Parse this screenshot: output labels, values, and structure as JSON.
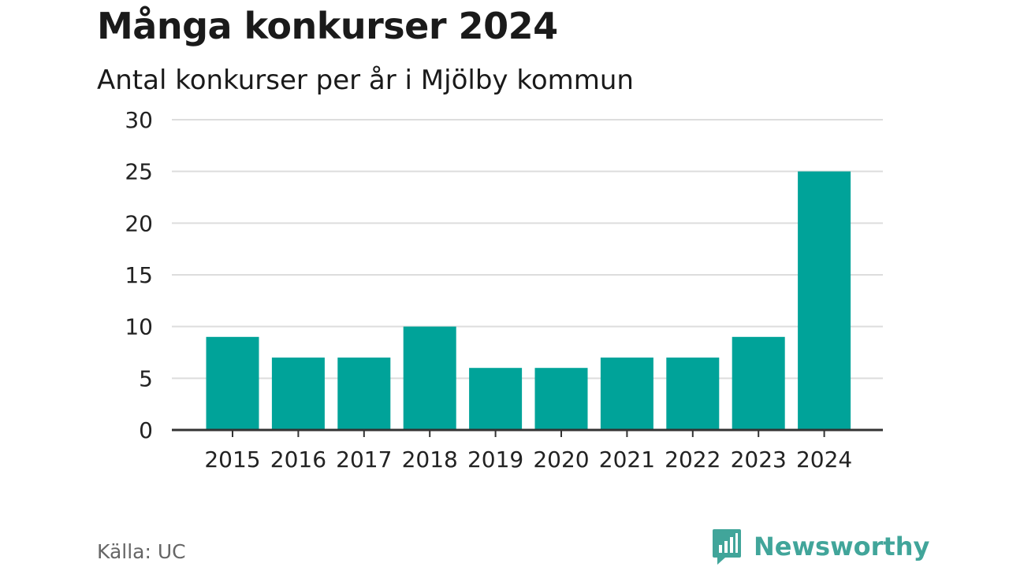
{
  "title": "Många konkurser 2024",
  "subtitle": "Antal konkurser per år i Mjölby kommun",
  "source": "Källa: UC",
  "brand": {
    "name": "Newsworthy",
    "color": "#41A59A",
    "logo_icon": "bar-chart-speech-bubble-icon"
  },
  "colors": {
    "bar": "#00A399",
    "grid": "#DDDDDD",
    "axis": "#333333"
  },
  "chart_data": {
    "type": "bar",
    "categories": [
      "2015",
      "2016",
      "2017",
      "2018",
      "2019",
      "2020",
      "2021",
      "2022",
      "2023",
      "2024"
    ],
    "values": [
      9,
      7,
      7,
      10,
      6,
      6,
      7,
      7,
      9,
      25
    ],
    "ylim": [
      0,
      30
    ],
    "yticks": [
      "0",
      "5",
      "10",
      "15",
      "20",
      "25",
      "30"
    ],
    "grid": true,
    "xlabel": "",
    "ylabel": ""
  }
}
